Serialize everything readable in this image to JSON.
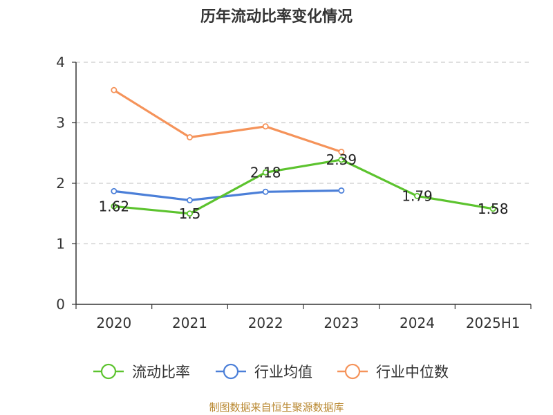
{
  "chart_data": {
    "type": "line",
    "title": "历年流动比率变化情况",
    "categories": [
      "2020",
      "2021",
      "2022",
      "2023",
      "2024",
      "2025H1"
    ],
    "y_ticks": [
      "0",
      "1",
      "2",
      "3",
      "4"
    ],
    "ylim": [
      0,
      4
    ],
    "grid": true,
    "legend_position": "bottom",
    "series": [
      {
        "name": "流动比率",
        "color": "#5cc32e",
        "values": [
          1.62,
          1.5,
          2.18,
          2.39,
          1.79,
          1.58
        ],
        "labels": [
          "1.62",
          "1.5",
          "2.18",
          "2.39",
          "1.79",
          "1.58"
        ]
      },
      {
        "name": "行业均值",
        "color": "#4b7fd8",
        "values": [
          1.87,
          1.72,
          1.86,
          1.88,
          null,
          null
        ]
      },
      {
        "name": "行业中位数",
        "color": "#f5935a",
        "values": [
          3.54,
          2.76,
          2.94,
          2.52,
          null,
          null
        ]
      }
    ]
  },
  "source_note": "制图数据来自恒生聚源数据库"
}
